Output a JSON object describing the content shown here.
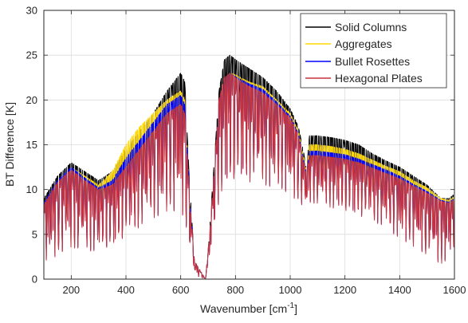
{
  "chart_data": {
    "type": "line",
    "xlabel": "Wavenumber [cm",
    "xlabel_sup": "-1",
    "xlabel_end": "]",
    "ylabel": "BT Difference [K]",
    "xlim": [
      100,
      1600
    ],
    "ylim": [
      0,
      30
    ],
    "xticks": [
      "200",
      "400",
      "600",
      "800",
      "1000",
      "1200",
      "1400",
      "1600"
    ],
    "yticks": [
      "0",
      "5",
      "10",
      "15",
      "20",
      "25",
      "30"
    ],
    "grid": true,
    "legend_position": "top-right",
    "series": [
      {
        "name": "Solid Columns",
        "color": "#000000",
        "envelope": [
          [
            100,
            9
          ],
          [
            150,
            11.5
          ],
          [
            200,
            13
          ],
          [
            250,
            12
          ],
          [
            300,
            11
          ],
          [
            350,
            12
          ],
          [
            400,
            14.5
          ],
          [
            450,
            16.5
          ],
          [
            500,
            18.5
          ],
          [
            550,
            21
          ],
          [
            600,
            23
          ],
          [
            615,
            22
          ],
          [
            630,
            12
          ],
          [
            650,
            2
          ],
          [
            690,
            0
          ],
          [
            700,
            3
          ],
          [
            720,
            12
          ],
          [
            740,
            21
          ],
          [
            760,
            24.5
          ],
          [
            780,
            25
          ],
          [
            800,
            24.5
          ],
          [
            850,
            23.5
          ],
          [
            900,
            22.5
          ],
          [
            950,
            21
          ],
          [
            1000,
            19
          ],
          [
            1030,
            17
          ],
          [
            1050,
            14
          ],
          [
            1060,
            12
          ],
          [
            1070,
            16
          ],
          [
            1100,
            16
          ],
          [
            1150,
            15.8
          ],
          [
            1200,
            15.5
          ],
          [
            1250,
            15
          ],
          [
            1300,
            14
          ],
          [
            1350,
            13.2
          ],
          [
            1400,
            12.5
          ],
          [
            1450,
            11.5
          ],
          [
            1500,
            10.5
          ],
          [
            1550,
            9
          ],
          [
            1580,
            9
          ],
          [
            1600,
            9.5
          ]
        ],
        "dips": [
          [
            100,
            2.5
          ],
          [
            150,
            3
          ],
          [
            200,
            4
          ],
          [
            250,
            3.5
          ],
          [
            300,
            3.5
          ],
          [
            350,
            4
          ],
          [
            400,
            5
          ],
          [
            450,
            6
          ],
          [
            500,
            7
          ],
          [
            550,
            8
          ],
          [
            600,
            8
          ],
          [
            615,
            7
          ],
          [
            630,
            4
          ],
          [
            650,
            0.5
          ],
          [
            690,
            0
          ],
          [
            700,
            1
          ],
          [
            720,
            5
          ],
          [
            740,
            9
          ],
          [
            760,
            11
          ],
          [
            800,
            11.5
          ],
          [
            900,
            11
          ],
          [
            1000,
            10
          ],
          [
            1050,
            8
          ],
          [
            1060,
            8
          ],
          [
            1070,
            9
          ],
          [
            1200,
            8
          ],
          [
            1300,
            7
          ],
          [
            1400,
            5
          ],
          [
            1500,
            3
          ],
          [
            1550,
            2
          ],
          [
            1600,
            3
          ]
        ]
      },
      {
        "name": "Aggregates",
        "color": "#ffd700",
        "envelope": [
          [
            100,
            8.5
          ],
          [
            150,
            11
          ],
          [
            200,
            12.5
          ],
          [
            250,
            11.5
          ],
          [
            300,
            10.5
          ],
          [
            350,
            12
          ],
          [
            400,
            15
          ],
          [
            450,
            17
          ],
          [
            500,
            18.5
          ],
          [
            550,
            20
          ],
          [
            600,
            21
          ],
          [
            615,
            20
          ],
          [
            630,
            11
          ],
          [
            650,
            2
          ],
          [
            690,
            0
          ],
          [
            700,
            3
          ],
          [
            720,
            11
          ],
          [
            740,
            20
          ],
          [
            760,
            22.5
          ],
          [
            780,
            23
          ],
          [
            800,
            22.8
          ],
          [
            850,
            22
          ],
          [
            900,
            21.5
          ],
          [
            950,
            20
          ],
          [
            1000,
            18.5
          ],
          [
            1030,
            16.5
          ],
          [
            1050,
            13.5
          ],
          [
            1060,
            12
          ],
          [
            1070,
            15
          ],
          [
            1100,
            15
          ],
          [
            1150,
            14.8
          ],
          [
            1200,
            14.5
          ],
          [
            1250,
            14
          ],
          [
            1300,
            13.3
          ],
          [
            1350,
            12.6
          ],
          [
            1400,
            12
          ],
          [
            1450,
            11
          ],
          [
            1500,
            10.2
          ],
          [
            1550,
            9
          ],
          [
            1580,
            8.8
          ],
          [
            1600,
            9.2
          ]
        ],
        "dips": [
          [
            100,
            2.3
          ],
          [
            150,
            2.8
          ],
          [
            200,
            3.8
          ],
          [
            250,
            3.3
          ],
          [
            300,
            3.4
          ],
          [
            350,
            4
          ],
          [
            400,
            5
          ],
          [
            450,
            6
          ],
          [
            500,
            7
          ],
          [
            550,
            7.8
          ],
          [
            600,
            7.8
          ],
          [
            615,
            6.8
          ],
          [
            630,
            4
          ],
          [
            650,
            0.5
          ],
          [
            690,
            0
          ],
          [
            700,
            1
          ],
          [
            720,
            5
          ],
          [
            740,
            9
          ],
          [
            760,
            10.8
          ],
          [
            800,
            11.3
          ],
          [
            900,
            10.8
          ],
          [
            1000,
            9.8
          ],
          [
            1050,
            7.8
          ],
          [
            1060,
            7.8
          ],
          [
            1070,
            8.8
          ],
          [
            1200,
            7.8
          ],
          [
            1300,
            6.8
          ],
          [
            1400,
            4.8
          ],
          [
            1500,
            2.9
          ],
          [
            1550,
            1.9
          ],
          [
            1600,
            2.9
          ]
        ]
      },
      {
        "name": "Bullet Rosettes",
        "color": "#0000ff",
        "envelope": [
          [
            100,
            8.5
          ],
          [
            150,
            11
          ],
          [
            200,
            12.5
          ],
          [
            250,
            11.3
          ],
          [
            300,
            10.2
          ],
          [
            350,
            11
          ],
          [
            400,
            13.5
          ],
          [
            450,
            15.5
          ],
          [
            500,
            17.5
          ],
          [
            550,
            19.5
          ],
          [
            600,
            20.5
          ],
          [
            615,
            19.5
          ],
          [
            630,
            11
          ],
          [
            650,
            2
          ],
          [
            690,
            0
          ],
          [
            700,
            3
          ],
          [
            720,
            11
          ],
          [
            740,
            20
          ],
          [
            760,
            22.5
          ],
          [
            780,
            23
          ],
          [
            800,
            22.6
          ],
          [
            850,
            21.8
          ],
          [
            900,
            21.2
          ],
          [
            950,
            19.8
          ],
          [
            1000,
            18.2
          ],
          [
            1030,
            16.2
          ],
          [
            1050,
            13.2
          ],
          [
            1060,
            11.8
          ],
          [
            1070,
            14.3
          ],
          [
            1100,
            14.3
          ],
          [
            1150,
            14.1
          ],
          [
            1200,
            13.9
          ],
          [
            1250,
            13.4
          ],
          [
            1300,
            12.8
          ],
          [
            1350,
            12.2
          ],
          [
            1400,
            11.5
          ],
          [
            1450,
            10.6
          ],
          [
            1500,
            9.8
          ],
          [
            1550,
            8.8
          ],
          [
            1580,
            8.6
          ],
          [
            1600,
            9
          ]
        ],
        "dips": [
          [
            100,
            2.2
          ],
          [
            150,
            2.7
          ],
          [
            200,
            3.7
          ],
          [
            250,
            3.2
          ],
          [
            300,
            3.3
          ],
          [
            350,
            3.9
          ],
          [
            400,
            4.9
          ],
          [
            450,
            5.9
          ],
          [
            500,
            6.9
          ],
          [
            550,
            7.7
          ],
          [
            600,
            7.7
          ],
          [
            615,
            6.7
          ],
          [
            630,
            3.9
          ],
          [
            650,
            0.5
          ],
          [
            690,
            0
          ],
          [
            700,
            1
          ],
          [
            720,
            4.9
          ],
          [
            740,
            8.9
          ],
          [
            760,
            10.7
          ],
          [
            800,
            11.2
          ],
          [
            900,
            10.7
          ],
          [
            1000,
            9.7
          ],
          [
            1050,
            7.7
          ],
          [
            1060,
            7.7
          ],
          [
            1070,
            8.7
          ],
          [
            1200,
            7.7
          ],
          [
            1300,
            6.7
          ],
          [
            1400,
            4.7
          ],
          [
            1500,
            2.8
          ],
          [
            1550,
            1.8
          ],
          [
            1600,
            2.8
          ]
        ]
      },
      {
        "name": "Hexagonal Plates",
        "color": "#c8323c",
        "envelope": [
          [
            100,
            8.3
          ],
          [
            150,
            10.8
          ],
          [
            200,
            12.2
          ],
          [
            250,
            11
          ],
          [
            300,
            10
          ],
          [
            350,
            10.5
          ],
          [
            400,
            12.5
          ],
          [
            450,
            14.5
          ],
          [
            500,
            16.5
          ],
          [
            550,
            18.5
          ],
          [
            600,
            19.5
          ],
          [
            615,
            18.5
          ],
          [
            630,
            10.5
          ],
          [
            650,
            2
          ],
          [
            690,
            0
          ],
          [
            700,
            3
          ],
          [
            720,
            11
          ],
          [
            740,
            20
          ],
          [
            760,
            22.5
          ],
          [
            780,
            23
          ],
          [
            800,
            22.5
          ],
          [
            850,
            21.5
          ],
          [
            900,
            20.8
          ],
          [
            950,
            19.5
          ],
          [
            1000,
            18
          ],
          [
            1030,
            16
          ],
          [
            1050,
            13
          ],
          [
            1060,
            11.6
          ],
          [
            1070,
            13.8
          ],
          [
            1100,
            13.8
          ],
          [
            1150,
            13.6
          ],
          [
            1200,
            13.4
          ],
          [
            1250,
            13
          ],
          [
            1300,
            12.4
          ],
          [
            1350,
            11.8
          ],
          [
            1400,
            11.2
          ],
          [
            1450,
            10.4
          ],
          [
            1500,
            9.6
          ],
          [
            1550,
            8.7
          ],
          [
            1580,
            8.5
          ],
          [
            1600,
            8.9
          ]
        ],
        "dips": [
          [
            100,
            2
          ],
          [
            150,
            2.6
          ],
          [
            200,
            3.6
          ],
          [
            250,
            3.1
          ],
          [
            300,
            3.2
          ],
          [
            350,
            3.8
          ],
          [
            400,
            4.8
          ],
          [
            450,
            5.8
          ],
          [
            500,
            6.8
          ],
          [
            550,
            7.6
          ],
          [
            600,
            7.6
          ],
          [
            615,
            6.6
          ],
          [
            630,
            3.8
          ],
          [
            650,
            0.5
          ],
          [
            690,
            0
          ],
          [
            700,
            1
          ],
          [
            720,
            4.8
          ],
          [
            740,
            8.8
          ],
          [
            760,
            10.6
          ],
          [
            800,
            11.1
          ],
          [
            900,
            10.6
          ],
          [
            1000,
            9.6
          ],
          [
            1050,
            7.6
          ],
          [
            1060,
            7.6
          ],
          [
            1070,
            8.6
          ],
          [
            1200,
            7.6
          ],
          [
            1300,
            6.6
          ],
          [
            1400,
            4.6
          ],
          [
            1500,
            2.7
          ],
          [
            1550,
            1.7
          ],
          [
            1600,
            2.7
          ]
        ]
      }
    ]
  }
}
